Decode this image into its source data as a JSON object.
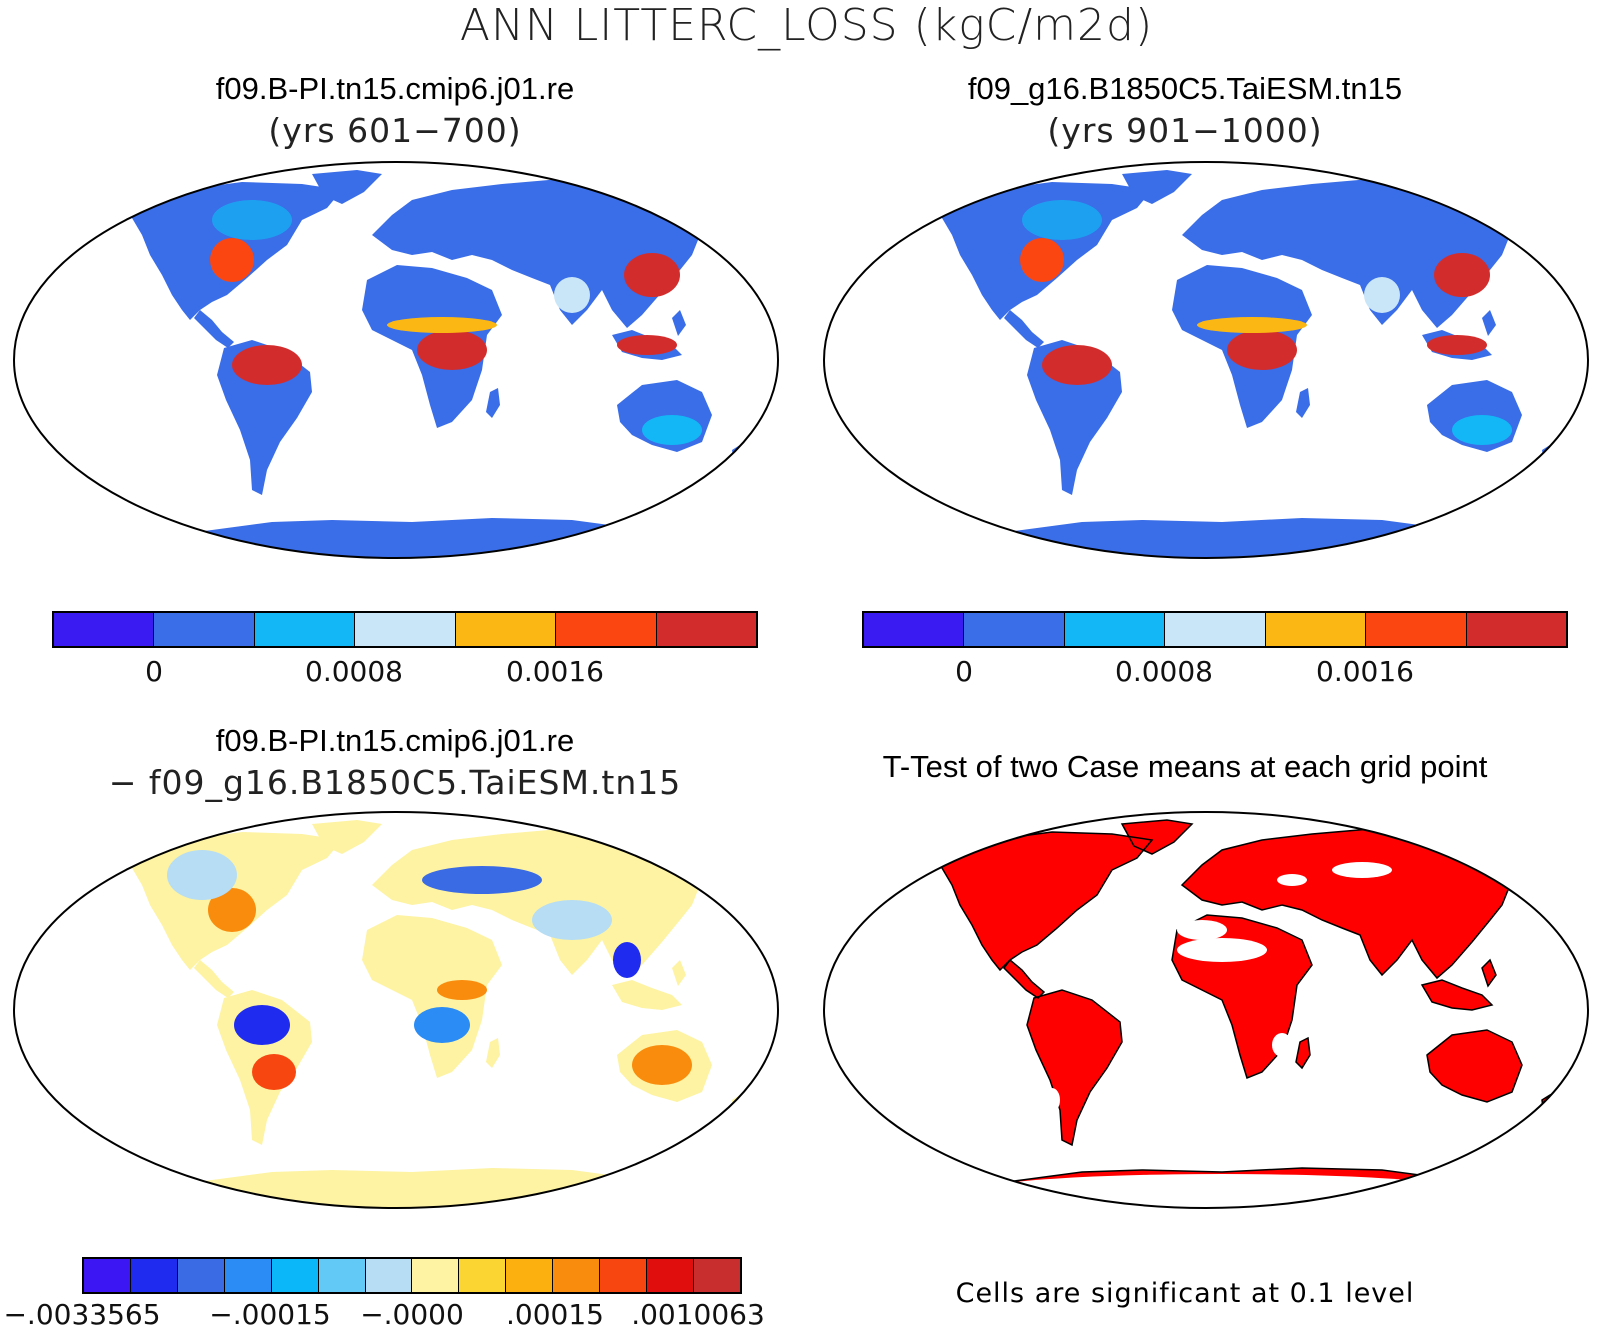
{
  "title": "ANN LITTERC_LOSS (kgC/m2d)",
  "panels": {
    "top_left": {
      "title": "f09.B-PI.tn15.cmip6.j01.re",
      "subtitle": "(yrs 601−700)"
    },
    "top_right": {
      "title": "f09_g16.B1850C5.TaiESM.tn15",
      "subtitle": "(yrs 901−1000)"
    },
    "bottom_left": {
      "title": "f09.B-PI.tn15.cmip6.j01.re",
      "subtitle": "− f09_g16.B1850C5.TaiESM.tn15"
    },
    "bottom_right": {
      "title": "T-Test of two Case means at each grid point"
    }
  },
  "colorbars": {
    "case": {
      "colors": [
        "#3a1cf2",
        "#3a6de8",
        "#13b7f5",
        "#c8e6f8",
        "#fbb814",
        "#fb4611",
        "#d32c2c"
      ],
      "ticks": [
        "0",
        "0.0008",
        "0.0016"
      ]
    },
    "diff": {
      "colors": [
        "#3d16f4",
        "#1f2cf0",
        "#3a6ae4",
        "#2a8cf4",
        "#0bb7f8",
        "#62c8f6",
        "#b6ddf4",
        "#fdf3a3",
        "#fbd633",
        "#fbb00f",
        "#f98b0d",
        "#f7460f",
        "#e10e0e",
        "#c92e2e"
      ],
      "ticks": [
        "−.0033565",
        "−.00015",
        "−.0000",
        ".00015",
        ".0010063"
      ]
    }
  },
  "footnote": "Cells are significant at 0.1 level",
  "colors": {
    "ttest_significant": "#ff0000",
    "land_case": "#3a6de8",
    "land_diff": "#fdf3a3"
  }
}
